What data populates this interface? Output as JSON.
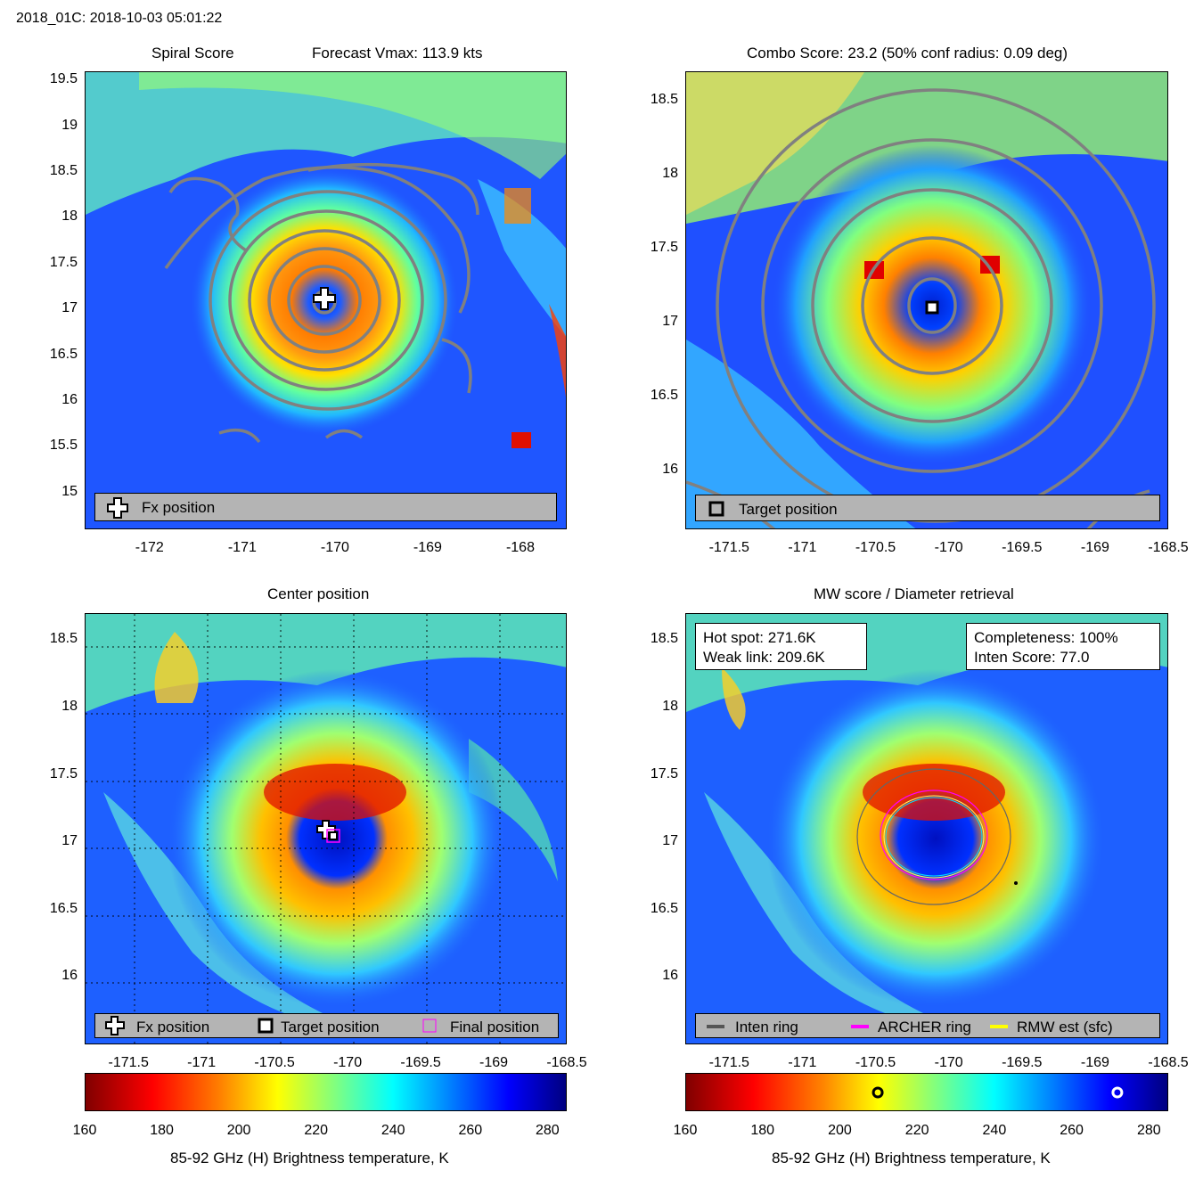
{
  "header": {
    "title": "2018_01C: 2018-10-03 05:01:22"
  },
  "panels": {
    "spiral": {
      "title_left": "Spiral Score",
      "title_right": "Forecast Vmax: 113.9 kts",
      "legend": {
        "fx_label": "Fx position"
      }
    },
    "combo": {
      "title": "Combo Score: 23.2  (50% conf radius: 0.09 deg)",
      "legend": {
        "target_label": "Target position"
      }
    },
    "center": {
      "title": "Center position",
      "legend": {
        "fx_label": "Fx position",
        "target_label": "Target position",
        "final_label": "Final position"
      }
    },
    "mw": {
      "title": "MW score / Diameter retrieval",
      "info_left": {
        "hot_spot": "Hot spot: 271.6K",
        "weak_link": "Weak link: 209.6K"
      },
      "info_right": {
        "completeness": "Completeness: 100%",
        "inten_score": "Inten Score: 77.0"
      },
      "legend": {
        "inten_ring": "Inten ring",
        "archer_ring": "ARCHER ring",
        "rmw_est": "RMW est (sfc)"
      }
    }
  },
  "colorbar": {
    "label": "85-92 GHz (H) Brightness temperature, K",
    "range": [
      160,
      285
    ]
  },
  "colors": {
    "inten_ring": "#555555",
    "archer_ring": "#ff00ff",
    "rmw_est": "#ffff00",
    "legend_bg": "#b4b4b4"
  },
  "chart_data": [
    {
      "type": "heatmap",
      "title": "Spiral Score  Forecast Vmax: 113.9 kts",
      "xlim": [
        -172.7,
        -167.5
      ],
      "ylim": [
        14.6,
        19.6
      ],
      "xticks": [
        -172,
        -171,
        -170,
        -169,
        -168
      ],
      "yticks": [
        15,
        15.5,
        16,
        16.5,
        17,
        17.5,
        18,
        18.5,
        19,
        19.5
      ],
      "markers": [
        {
          "name": "Fx position",
          "lon": -170.05,
          "lat": 17.15
        }
      ]
    },
    {
      "type": "heatmap",
      "title": "Combo Score: 23.2  (50% conf radius: 0.09 deg)",
      "xlim": [
        -171.8,
        -168.5
      ],
      "ylim": [
        15.6,
        18.7
      ],
      "xticks": [
        -171.5,
        -171,
        -170.5,
        -170,
        -169.5,
        -169,
        -168.5
      ],
      "yticks": [
        16,
        16.5,
        17,
        17.5,
        18,
        18.5
      ],
      "markers": [
        {
          "name": "Target position",
          "lon": -170.08,
          "lat": 17.1
        }
      ]
    },
    {
      "type": "heatmap",
      "title": "Center position",
      "xlim": [
        -171.8,
        -168.5
      ],
      "ylim": [
        15.5,
        18.7
      ],
      "xticks": [
        -171.5,
        -171,
        -170.5,
        -170,
        -169.5,
        -169,
        -168.5
      ],
      "yticks": [
        16,
        16.5,
        17,
        17.5,
        18,
        18.5
      ],
      "markers": [
        {
          "name": "Fx position",
          "lon": -170.15,
          "lat": 17.15
        },
        {
          "name": "Target position",
          "lon": -170.1,
          "lat": 17.1
        },
        {
          "name": "Final position",
          "lon": -170.1,
          "lat": 17.1
        }
      ]
    },
    {
      "type": "heatmap",
      "title": "MW score / Diameter retrieval",
      "xlim": [
        -171.8,
        -168.5
      ],
      "ylim": [
        15.5,
        18.7
      ],
      "xticks": [
        -171.5,
        -171,
        -170.5,
        -170,
        -169.5,
        -169,
        -168.5
      ],
      "yticks": [
        16,
        16.5,
        17,
        17.5,
        18,
        18.5
      ],
      "colorbar_markers": [
        {
          "name": "Weak link",
          "value": 209.6
        },
        {
          "name": "Hot spot",
          "value": 271.6
        }
      ]
    }
  ]
}
